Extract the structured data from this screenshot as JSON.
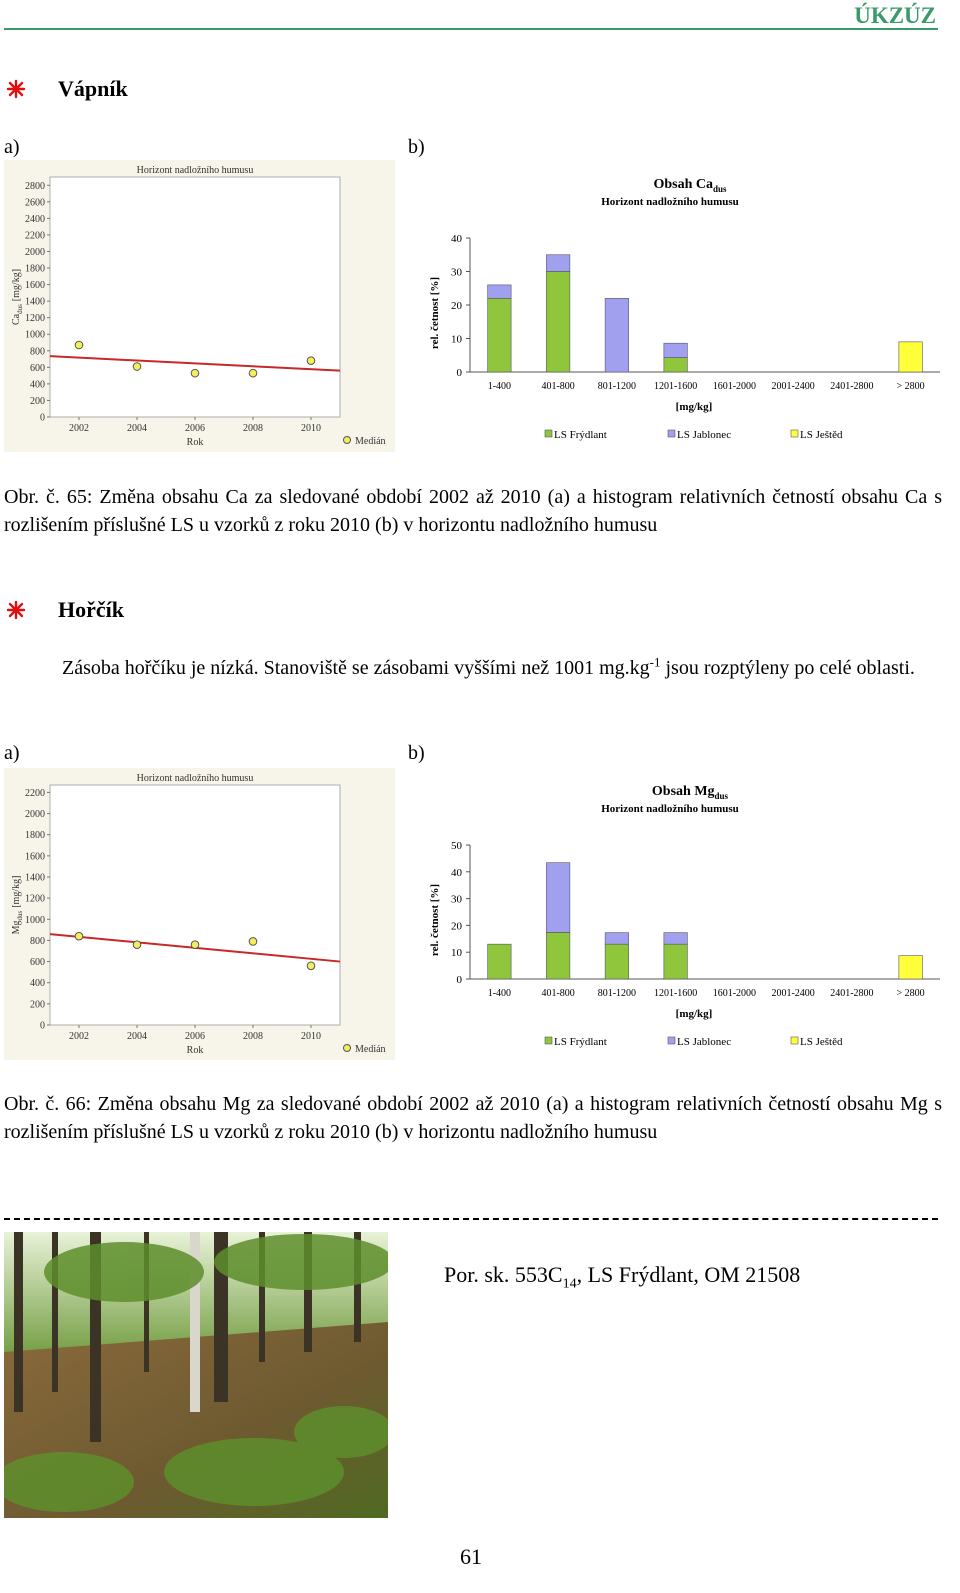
{
  "header": {
    "org": "ÚKZÚZ"
  },
  "sections": [
    {
      "heading": "Vápník",
      "panel_labels": [
        "a)",
        "b)"
      ],
      "chart_a": {
        "type": "scatter",
        "title": "Horizont nadložního humusu",
        "y_label": {
          "main": "Ca",
          "sub": "dus",
          "unit": "[mg/kg]"
        },
        "x_label": "Rok",
        "legend": "Medián",
        "x": [
          2002,
          2004,
          2006,
          2008,
          2010
        ],
        "values": [
          870,
          610,
          530,
          530,
          680
        ],
        "color": "#f2ee5e",
        "xlim": [
          2001,
          2011
        ],
        "xticks": [
          2002,
          2004,
          2006,
          2008,
          2010
        ],
        "ylim": [
          0,
          2900
        ],
        "yticks": [
          0,
          200,
          400,
          600,
          800,
          1000,
          1200,
          1400,
          1600,
          1800,
          2000,
          2200,
          2400,
          2600,
          2800
        ],
        "trend_x": [
          2001,
          2011
        ],
        "trend_values": [
          735,
          560
        ],
        "trend_color": "#c82828"
      },
      "chart_b": {
        "type": "bar",
        "stacked": true,
        "title": {
          "main": "Obsah Ca",
          "sub": "dus"
        },
        "subtitle": "Horizont  nadložního  humusu",
        "y_label": "rel. četnost [%]",
        "x_label": "[mg/kg]",
        "categories": [
          "1-400",
          "401-800",
          "801-1200",
          "1201-1600",
          "1601-2000",
          "2001-2400",
          "2401-2800",
          "> 2800"
        ],
        "series": [
          {
            "name": "LS Frýdlant",
            "color": "#8fc63c",
            "values": [
              22,
              30,
              0,
              4.3,
              0,
              0,
              0,
              0
            ]
          },
          {
            "name": "LS Jablonec",
            "color": "#a0a0ee",
            "values": [
              4,
              5,
              22,
              4.3,
              0,
              0,
              0,
              0
            ]
          },
          {
            "name": "LS Ještěd",
            "color": "#ffff3a",
            "values": [
              0,
              0,
              0,
              0,
              0,
              0,
              0,
              9
            ]
          }
        ],
        "ylim": [
          0,
          40
        ],
        "yticks": [
          0,
          10,
          20,
          30,
          40
        ]
      },
      "caption": "Obr. č. 65: Změna obsahu Ca za sledované období 2002 až 2010 (a) a histogram relativních četností obsahu Ca s rozlišením příslušné LS u vzorků z roku 2010 (b) v horizontu nadložního humusu"
    },
    {
      "heading": "Hořčík",
      "paragraph": {
        "before": "Zásoba hořčíku je nízká. Stanoviště se zásobami vyššími než 1001 mg.kg",
        "sup": "-1",
        "after": " jsou rozptýleny po celé oblasti."
      },
      "panel_labels": [
        "a)",
        "b)"
      ],
      "chart_a": {
        "type": "scatter",
        "title": "Horizont nadložního humusu",
        "y_label": {
          "main": "Mg",
          "sub": "dus",
          "unit": "[mg/kg]"
        },
        "x_label": "Rok",
        "legend": "Medián",
        "x": [
          2002,
          2004,
          2006,
          2008,
          2010
        ],
        "values": [
          840,
          760,
          760,
          790,
          560
        ],
        "color": "#f2ee5e",
        "xlim": [
          2001,
          2011
        ],
        "xticks": [
          2002,
          2004,
          2006,
          2008,
          2010
        ],
        "ylim": [
          0,
          2270
        ],
        "yticks": [
          0,
          200,
          400,
          600,
          800,
          1000,
          1200,
          1400,
          1600,
          1800,
          2000,
          2200
        ],
        "trend_x": [
          2001,
          2011
        ],
        "trend_values": [
          860,
          600
        ],
        "trend_color": "#c82828"
      },
      "chart_b": {
        "type": "bar",
        "stacked": true,
        "title": {
          "main": "Obsah Mg",
          "sub": "dus"
        },
        "subtitle": "Horizont  nadložního  humusu",
        "y_label": "rel. četnost [%]",
        "x_label": "[mg/kg]",
        "categories": [
          "1-400",
          "401-800",
          "801-1200",
          "1201-1600",
          "1601-2000",
          "2001-2400",
          "2401-2800",
          "> 2800"
        ],
        "series": [
          {
            "name": "LS Frýdlant",
            "color": "#8fc63c",
            "values": [
              13,
              17.4,
              13,
              13,
              0,
              0,
              0,
              0
            ]
          },
          {
            "name": "LS Jablonec",
            "color": "#a0a0ee",
            "values": [
              0,
              26,
              4.3,
              4.3,
              0,
              0,
              0,
              0
            ]
          },
          {
            "name": "LS Ještěd",
            "color": "#ffff3a",
            "values": [
              0,
              0,
              0,
              0,
              0,
              0,
              0,
              8.7
            ]
          }
        ],
        "ylim": [
          0,
          50
        ],
        "yticks": [
          0,
          10,
          20,
          30,
          40,
          50
        ]
      },
      "caption": "Obr. č. 66: Změna obsahu Mg za sledované období 2002 až 2010 (a) a histogram relativních četností obsahu Mg s rozlišením příslušné LS u vzorků z roku 2010 (b) v horizontu nadložního humusu"
    }
  ],
  "photo_caption": {
    "before": "Por. sk. 553C",
    "sub": "14",
    "after": ", LS Frýdlant, OM 21508"
  },
  "page_number": "61"
}
